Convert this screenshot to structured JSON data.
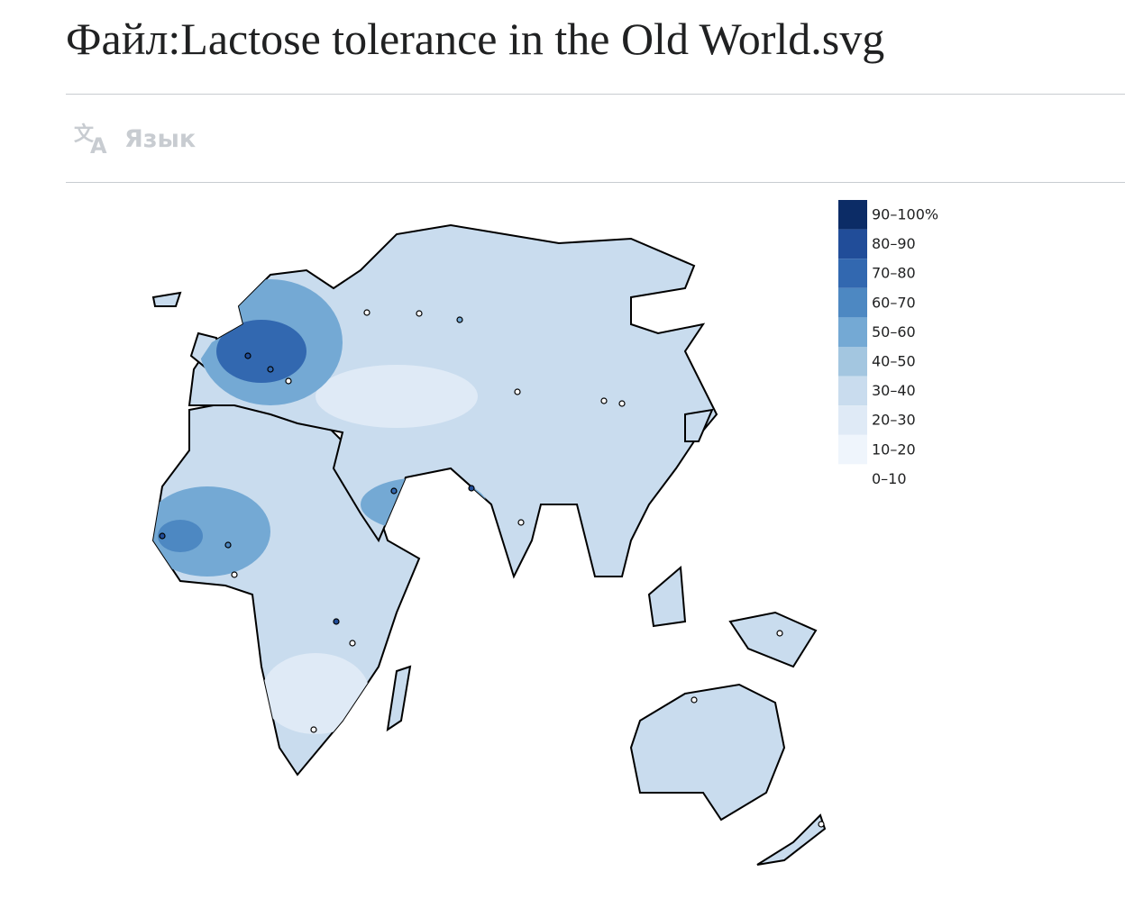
{
  "header": {
    "title": "Файл:Lactose tolerance in the Old World.svg",
    "language_button": "Язык"
  },
  "legend": [
    {
      "label": "90–100%",
      "color": "#0c2c66"
    },
    {
      "label": "80–90",
      "color": "#214d99"
    },
    {
      "label": "70–80",
      "color": "#3268b0"
    },
    {
      "label": "60–70",
      "color": "#4d88c2"
    },
    {
      "label": "50–60",
      "color": "#74a9d4"
    },
    {
      "label": "40–50",
      "color": "#a3c6e0"
    },
    {
      "label": "30–40",
      "color": "#c9dcee"
    },
    {
      "label": "20–30",
      "color": "#dfeaf6"
    },
    {
      "label": "10–20",
      "color": "#eff5fc"
    },
    {
      "label": "0–10",
      "color": "#ffffff"
    }
  ]
}
